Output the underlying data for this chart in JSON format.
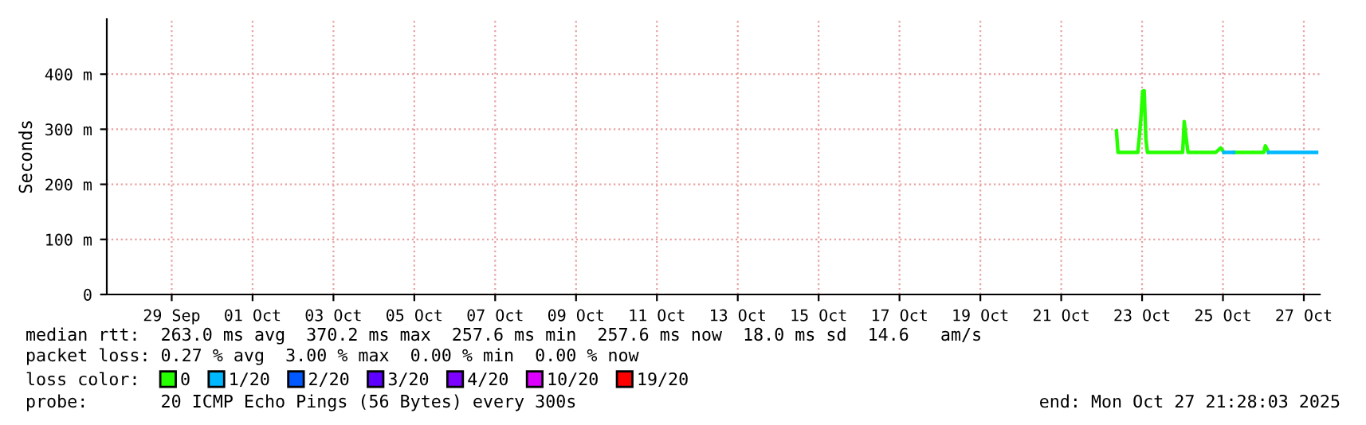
{
  "chart_data": {
    "type": "line",
    "ylabel": "Seconds",
    "legend_title": "loss color:",
    "x": [
      "2025-10-22T20:46",
      "2025-10-22T21:42",
      "2025-10-23T09:28",
      "2025-10-23T10:25",
      "2025-10-23T11:20",
      "2025-10-23T12:20",
      "2025-10-23T13:15",
      "2025-10-23T14:15",
      "2025-10-23T15:10",
      "2025-10-24T12:05",
      "2025-10-24T13:00",
      "2025-10-24T14:20",
      "2025-10-24T15:15",
      "2025-10-25T07:45",
      "2025-10-25T10:40",
      "2025-10-25T12:35",
      "2025-10-25T18:20",
      "2025-10-25T18:30",
      "2025-10-26T12:15",
      "2025-10-26T13:10",
      "2025-10-26T15:05",
      "2025-10-27T19:35"
    ],
    "series": [
      {
        "name": "0",
        "color": "#26ff00",
        "values": [
          297,
          258,
          258,
          288,
          322,
          369,
          370,
          283,
          258,
          258,
          314,
          280,
          258,
          258,
          266,
          258,
          null,
          258,
          258,
          270,
          258,
          null
        ]
      },
      {
        "name": "1/20",
        "color": "#00b8ff",
        "values": [
          null,
          null,
          null,
          null,
          null,
          null,
          null,
          null,
          null,
          null,
          null,
          null,
          null,
          null,
          null,
          258,
          258,
          null,
          null,
          null,
          258,
          258
        ]
      },
      {
        "name": "2/20",
        "color": "#0059ff",
        "values": [
          null,
          null,
          null,
          null,
          null,
          null,
          null,
          null,
          null,
          null,
          null,
          null,
          null,
          null,
          null,
          null,
          null,
          null,
          null,
          null,
          null,
          null
        ]
      },
      {
        "name": "3/20",
        "color": "#5e00ff",
        "values": [
          null,
          null,
          null,
          null,
          null,
          null,
          null,
          null,
          null,
          null,
          null,
          null,
          null,
          null,
          null,
          null,
          null,
          null,
          null,
          null,
          null,
          null
        ]
      },
      {
        "name": "4/20",
        "color": "#7e00ff",
        "values": [
          null,
          null,
          null,
          null,
          null,
          null,
          null,
          null,
          null,
          null,
          null,
          null,
          null,
          null,
          null,
          null,
          null,
          null,
          null,
          null,
          null,
          null
        ]
      },
      {
        "name": "10/20",
        "color": "#dd00ff",
        "values": [
          null,
          null,
          null,
          null,
          null,
          null,
          null,
          null,
          null,
          null,
          null,
          null,
          null,
          null,
          null,
          null,
          null,
          null,
          null,
          null,
          null,
          null
        ]
      },
      {
        "name": "19/20",
        "color": "#ff0000",
        "values": [
          null,
          null,
          null,
          null,
          null,
          null,
          null,
          null,
          null,
          null,
          null,
          null,
          null,
          null,
          null,
          null,
          null,
          null,
          null,
          null,
          null,
          null
        ]
      }
    ],
    "xlim": [
      "2025-09-27T21:28",
      "2025-10-27T21:28"
    ],
    "xticks": [
      {
        "value": "2025-09-29T12:00",
        "label": "29 Sep"
      },
      {
        "value": "2025-10-01T12:00",
        "label": "01 Oct"
      },
      {
        "value": "2025-10-03T12:00",
        "label": "03 Oct"
      },
      {
        "value": "2025-10-05T12:00",
        "label": "05 Oct"
      },
      {
        "value": "2025-10-07T12:00",
        "label": "07 Oct"
      },
      {
        "value": "2025-10-09T12:00",
        "label": "09 Oct"
      },
      {
        "value": "2025-10-11T12:00",
        "label": "11 Oct"
      },
      {
        "value": "2025-10-13T12:00",
        "label": "13 Oct"
      },
      {
        "value": "2025-10-15T12:00",
        "label": "15 Oct"
      },
      {
        "value": "2025-10-17T12:00",
        "label": "17 Oct"
      },
      {
        "value": "2025-10-19T12:00",
        "label": "19 Oct"
      },
      {
        "value": "2025-10-21T12:00",
        "label": "21 Oct"
      },
      {
        "value": "2025-10-23T12:00",
        "label": "23 Oct"
      },
      {
        "value": "2025-10-25T12:00",
        "label": "25 Oct"
      },
      {
        "value": "2025-10-27T12:00",
        "label": "27 Oct"
      }
    ],
    "ylim": [
      0,
      500
    ],
    "yticks": [
      0,
      {
        "value": 100,
        "label": "100 m"
      },
      {
        "value": 200,
        "label": "200 m"
      },
      {
        "value": 300,
        "label": "300 m"
      },
      {
        "value": 400,
        "label": "400 m"
      }
    ],
    "grid": true,
    "legend": "bottom",
    "marker": "none",
    "line_style": "solid",
    "annotations": [
      "median rtt:  263.0 ms avg  370.2 ms max  257.6 ms min  257.6 ms now  18.0 ms sd  14.6   am/s",
      "packet loss: 0.27 % avg  3.00 % max  0.00 % min  0.00 % now",
      "probe:       20 ICMP Echo Pings (56 Bytes) every 300s",
      "end: Mon Oct 27 21:28:03 2025"
    ]
  }
}
